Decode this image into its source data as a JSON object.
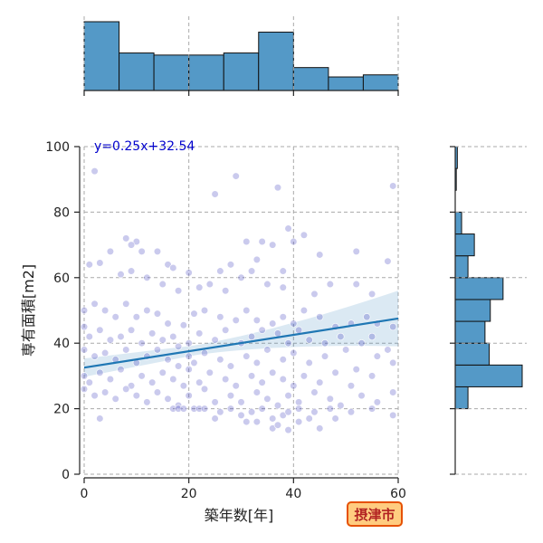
{
  "chart_data": {
    "type": "scatter",
    "xlabel": "築年数[年]",
    "ylabel": "専有面積[m2]",
    "xlim": [
      0,
      60
    ],
    "ylim": [
      0,
      100
    ],
    "xticks": [
      "0",
      "20",
      "40",
      "60"
    ],
    "yticks": [
      "0",
      "20",
      "40",
      "60",
      "80",
      "100"
    ],
    "grid": true,
    "annotation": "y=0.25x+32.54",
    "regression": {
      "slope": 0.25,
      "intercept": 32.54,
      "x_range": [
        0,
        60
      ],
      "ci_halfwidth_at_ends": [
        2.8,
        8.5
      ]
    },
    "badge": "摂津市",
    "colors": {
      "point": "#4040c0",
      "regression": "#1f77b4",
      "hist": "#5499c7",
      "badge_fill": "#ffcc80",
      "badge_border": "#e65100"
    },
    "points": [
      [
        2,
        92.5
      ],
      [
        29,
        91
      ],
      [
        25,
        85.5
      ],
      [
        37,
        87.5
      ],
      [
        59,
        88
      ],
      [
        8,
        72
      ],
      [
        11,
        68
      ],
      [
        14,
        68
      ],
      [
        31,
        71
      ],
      [
        34,
        71
      ],
      [
        36,
        70
      ],
      [
        39,
        75
      ],
      [
        40,
        71
      ],
      [
        42,
        73
      ],
      [
        10,
        71
      ],
      [
        9,
        70
      ],
      [
        5,
        68
      ],
      [
        16,
        64
      ],
      [
        17,
        63
      ],
      [
        20,
        61.5
      ],
      [
        26,
        62
      ],
      [
        28,
        64
      ],
      [
        32,
        62
      ],
      [
        33,
        65.5
      ],
      [
        38,
        62
      ],
      [
        45,
        67
      ],
      [
        52,
        68
      ],
      [
        58,
        65
      ],
      [
        1,
        64
      ],
      [
        3,
        64.5
      ],
      [
        7,
        61
      ],
      [
        9,
        62
      ],
      [
        12,
        60
      ],
      [
        15,
        58
      ],
      [
        18,
        56
      ],
      [
        22,
        57
      ],
      [
        24,
        58
      ],
      [
        27,
        56
      ],
      [
        30,
        60
      ],
      [
        35,
        58
      ],
      [
        38,
        57
      ],
      [
        44,
        55
      ],
      [
        47,
        58
      ],
      [
        52,
        58
      ],
      [
        55,
        55
      ],
      [
        0,
        50
      ],
      [
        2,
        52
      ],
      [
        4,
        50
      ],
      [
        6,
        48
      ],
      [
        8,
        52
      ],
      [
        10,
        48
      ],
      [
        12,
        50
      ],
      [
        14,
        49
      ],
      [
        16,
        46
      ],
      [
        19,
        45.5
      ],
      [
        21,
        49
      ],
      [
        23,
        50
      ],
      [
        26,
        48
      ],
      [
        29,
        47
      ],
      [
        31,
        50
      ],
      [
        33,
        47
      ],
      [
        36,
        46
      ],
      [
        38,
        48
      ],
      [
        40,
        46
      ],
      [
        42,
        50
      ],
      [
        45,
        48
      ],
      [
        48,
        45
      ],
      [
        51,
        46
      ],
      [
        54,
        48
      ],
      [
        56,
        46
      ],
      [
        59,
        45
      ],
      [
        0,
        45
      ],
      [
        1,
        42
      ],
      [
        3,
        44
      ],
      [
        5,
        41
      ],
      [
        7,
        42
      ],
      [
        9,
        44
      ],
      [
        11,
        40
      ],
      [
        13,
        43
      ],
      [
        15,
        41
      ],
      [
        17,
        42
      ],
      [
        18,
        39
      ],
      [
        20,
        40
      ],
      [
        22,
        43
      ],
      [
        25,
        41
      ],
      [
        27,
        44
      ],
      [
        30,
        40
      ],
      [
        32,
        42
      ],
      [
        34,
        44
      ],
      [
        37,
        43
      ],
      [
        39,
        40
      ],
      [
        41,
        44
      ],
      [
        43,
        41
      ],
      [
        46,
        40
      ],
      [
        49,
        42
      ],
      [
        53,
        40
      ],
      [
        55,
        42
      ],
      [
        58,
        38
      ],
      [
        0,
        38
      ],
      [
        2,
        36
      ],
      [
        4,
        37
      ],
      [
        6,
        35
      ],
      [
        8,
        38
      ],
      [
        10,
        34
      ],
      [
        12,
        36
      ],
      [
        14,
        38
      ],
      [
        16,
        35
      ],
      [
        18,
        33
      ],
      [
        20,
        36
      ],
      [
        21,
        34
      ],
      [
        23,
        37
      ],
      [
        26,
        35
      ],
      [
        28,
        33
      ],
      [
        31,
        36
      ],
      [
        33,
        34
      ],
      [
        35,
        38
      ],
      [
        38,
        35
      ],
      [
        40,
        37
      ],
      [
        43,
        34
      ],
      [
        46,
        36
      ],
      [
        50,
        38
      ],
      [
        52,
        32
      ],
      [
        56,
        36
      ],
      [
        59,
        34
      ],
      [
        0,
        30
      ],
      [
        1,
        28
      ],
      [
        3,
        31
      ],
      [
        5,
        29
      ],
      [
        7,
        32
      ],
      [
        9,
        27
      ],
      [
        11,
        30
      ],
      [
        13,
        28
      ],
      [
        15,
        31
      ],
      [
        17,
        29
      ],
      [
        19,
        27
      ],
      [
        20,
        32
      ],
      [
        22,
        28
      ],
      [
        24,
        31
      ],
      [
        27,
        29
      ],
      [
        29,
        27
      ],
      [
        32,
        30
      ],
      [
        34,
        28
      ],
      [
        36,
        31
      ],
      [
        38,
        29
      ],
      [
        40,
        27
      ],
      [
        42,
        30
      ],
      [
        45,
        28
      ],
      [
        48,
        31
      ],
      [
        51,
        27
      ],
      [
        55,
        30
      ],
      [
        0,
        26
      ],
      [
        2,
        24
      ],
      [
        4,
        25
      ],
      [
        6,
        23
      ],
      [
        8,
        26
      ],
      [
        10,
        24
      ],
      [
        12,
        22
      ],
      [
        14,
        25
      ],
      [
        16,
        23
      ],
      [
        18,
        21
      ],
      [
        20,
        24
      ],
      [
        23,
        26
      ],
      [
        25,
        22
      ],
      [
        28,
        24
      ],
      [
        30,
        22
      ],
      [
        33,
        25
      ],
      [
        35,
        23
      ],
      [
        37,
        21
      ],
      [
        39,
        24
      ],
      [
        41,
        22
      ],
      [
        44,
        25
      ],
      [
        47,
        23
      ],
      [
        49,
        21
      ],
      [
        53,
        24
      ],
      [
        56,
        22
      ],
      [
        59,
        25
      ],
      [
        17,
        20
      ],
      [
        18,
        20
      ],
      [
        19,
        20
      ],
      [
        21,
        20
      ],
      [
        22,
        20
      ],
      [
        23,
        20
      ],
      [
        26,
        19
      ],
      [
        28,
        20
      ],
      [
        30,
        18
      ],
      [
        32,
        19
      ],
      [
        34,
        20
      ],
      [
        36,
        17
      ],
      [
        38,
        18
      ],
      [
        39,
        19
      ],
      [
        41,
        20
      ],
      [
        44,
        19
      ],
      [
        47,
        20
      ],
      [
        51,
        19
      ],
      [
        55,
        20
      ],
      [
        59,
        18
      ],
      [
        3,
        17
      ],
      [
        25,
        17
      ],
      [
        31,
        16
      ],
      [
        33,
        16
      ],
      [
        36,
        14
      ],
      [
        37,
        15
      ],
      [
        39,
        13.5
      ],
      [
        41,
        16
      ],
      [
        43,
        17
      ],
      [
        45,
        14
      ],
      [
        48,
        17
      ]
    ],
    "hist_x": {
      "bin_edges": [
        0,
        6.67,
        13.33,
        20,
        26.67,
        33.33,
        40,
        46.67,
        53.33,
        60
      ],
      "counts": [
        66,
        36,
        34,
        34,
        36,
        56,
        22,
        13,
        15
      ]
    },
    "hist_y": {
      "bin_edges": [
        0,
        6.67,
        13.33,
        20,
        26.67,
        33.33,
        40,
        46.67,
        53.33,
        60,
        66.67,
        73.33,
        80,
        86.67,
        93.33,
        100
      ],
      "counts": [
        0,
        0,
        0,
        12,
        63,
        32,
        28,
        33,
        45,
        12,
        18,
        6,
        0,
        1,
        2
      ]
    }
  }
}
